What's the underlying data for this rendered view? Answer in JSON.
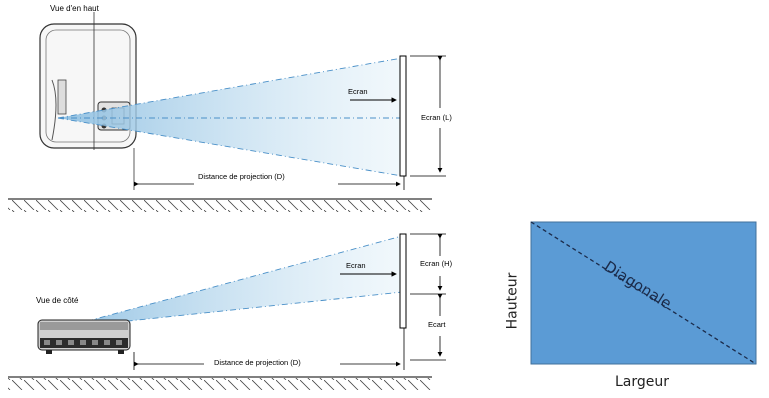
{
  "top_view": {
    "title": "Vue d'en haut",
    "screen_arrow_label": "Ecran",
    "screen_width_label": "Ecran (L)",
    "distance_label": "Distance de projection (D)"
  },
  "side_view": {
    "title": "Vue de côté",
    "screen_arrow_label": "Ecran",
    "screen_height_label": "Ecran (H)",
    "offset_label": "Ecart",
    "distance_label": "Distance de projection (D)"
  },
  "screen_ratio": {
    "diagonal_label": "Diagonale",
    "height_label": "Hauteur",
    "width_label": "Largeur",
    "fill_color": "#5b9bd5"
  },
  "colors": {
    "beam": "#a9cfe8",
    "beam_line": "#4a90c8"
  }
}
